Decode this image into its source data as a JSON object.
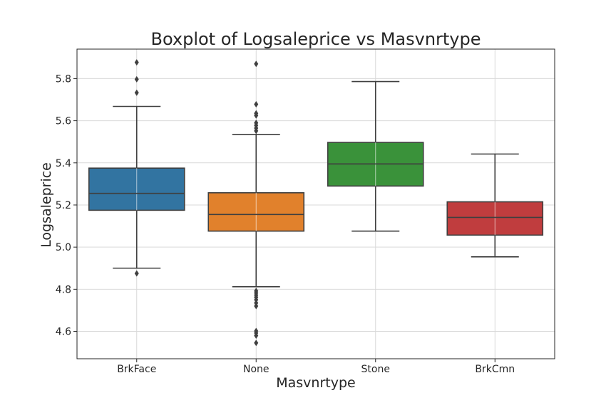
{
  "chart_data": {
    "type": "boxplot",
    "title": "Boxplot of Logsaleprice vs Masvnrtype",
    "xlabel": "Masvnrtype",
    "ylabel": "Logsaleprice",
    "ylim": [
      4.47,
      5.94
    ],
    "yticks": [
      "4.6",
      "4.8",
      "5.0",
      "5.2",
      "5.4",
      "5.6",
      "5.8"
    ],
    "grid": true,
    "categories": [
      "BrkFace",
      "None",
      "Stone",
      "BrkCmn"
    ],
    "series": [
      {
        "category": "BrkFace",
        "color": "#3274a1",
        "whisker_low": 4.9,
        "q1": 5.175,
        "median": 5.255,
        "q3": 5.375,
        "whisker_high": 5.668,
        "outliers": [
          4.875,
          5.733,
          5.797,
          5.877
        ]
      },
      {
        "category": "None",
        "color": "#e1812c",
        "whisker_low": 4.812,
        "q1": 5.076,
        "median": 5.155,
        "q3": 5.258,
        "whisker_high": 5.535,
        "outliers": [
          4.545,
          4.58,
          4.592,
          4.602,
          4.72,
          4.735,
          4.75,
          4.762,
          4.772,
          4.782,
          4.792,
          5.552,
          5.565,
          5.578,
          5.59,
          5.625,
          5.635,
          5.678,
          5.87
        ]
      },
      {
        "category": "Stone",
        "color": "#3a923a",
        "whisker_low": 5.076,
        "q1": 5.29,
        "median": 5.395,
        "q3": 5.497,
        "whisker_high": 5.786,
        "outliers": []
      },
      {
        "category": "BrkCmn",
        "color": "#c03d3e",
        "whisker_low": 4.954,
        "q1": 5.057,
        "median": 5.141,
        "q3": 5.215,
        "whisker_high": 5.442,
        "outliers": []
      }
    ]
  }
}
